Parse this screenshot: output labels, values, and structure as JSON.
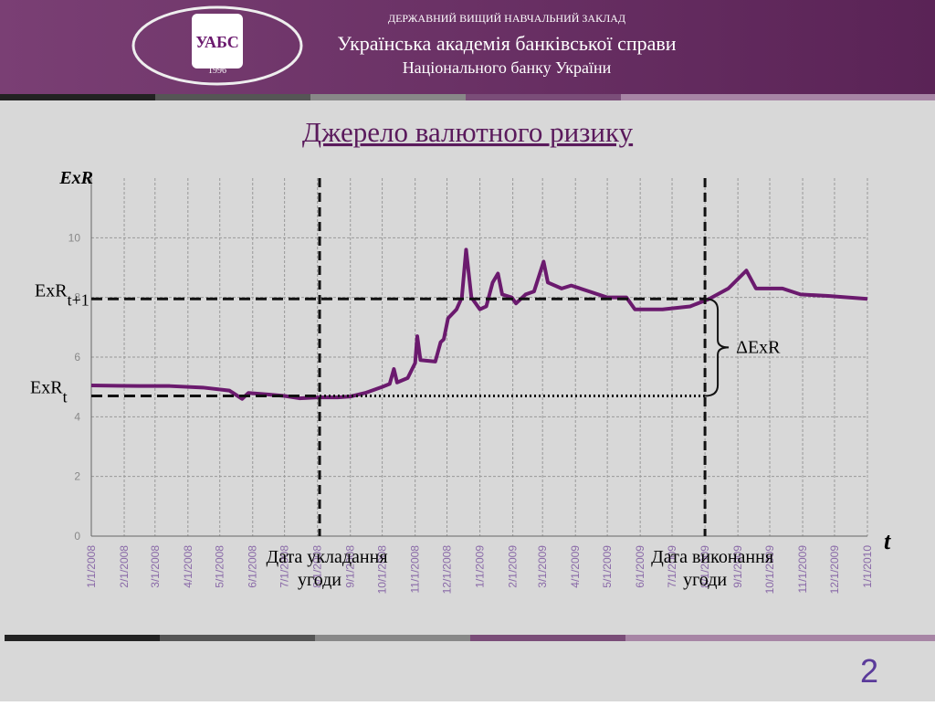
{
  "header": {
    "pretitle": "ДЕРЖАВНИЙ ВИЩИЙ НАВЧАЛЬНИЙ ЗАКЛАД",
    "title": "Українська академія банківської справи",
    "subtitle": "Національного банку України",
    "logo_text": "УАБС",
    "logo_year": "1996"
  },
  "slide_title": "Джерело валютного ризику",
  "page_number": "2",
  "chart_data": {
    "type": "line",
    "y_label": "ExR",
    "x_label": "t",
    "x": [
      "2008-01-01",
      "2008-02-15",
      "2008-03-15",
      "2008-04-15",
      "2008-05-10",
      "2008-05-22",
      "2008-05-28",
      "2008-06-15",
      "2008-07-01",
      "2008-07-15",
      "2008-08-01",
      "2008-08-20",
      "2008-09-01",
      "2008-09-15",
      "2008-10-01",
      "2008-10-08",
      "2008-10-12",
      "2008-10-15",
      "2008-10-25",
      "2008-11-01",
      "2008-11-03",
      "2008-11-06",
      "2008-11-20",
      "2008-11-25",
      "2008-11-28",
      "2008-12-02",
      "2008-12-10",
      "2008-12-15",
      "2008-12-19",
      "2008-12-24",
      "2009-01-01",
      "2009-01-07",
      "2009-01-13",
      "2009-01-18",
      "2009-01-22",
      "2009-01-31",
      "2009-02-04",
      "2009-02-13",
      "2009-02-21",
      "2009-03-02",
      "2009-03-06",
      "2009-03-19",
      "2009-03-28",
      "2009-04-14",
      "2009-05-01",
      "2009-05-19",
      "2009-05-27",
      "2009-06-22",
      "2009-07-18",
      "2009-08-05",
      "2009-08-23",
      "2009-09-09",
      "2009-09-18",
      "2009-10-13",
      "2009-10-30",
      "2009-11-25",
      "2010-01-01"
    ],
    "series": [
      {
        "name": "ExR",
        "color": "#6b1a6e",
        "values": [
          5.05,
          5.03,
          5.03,
          4.98,
          4.88,
          4.6,
          4.8,
          4.75,
          4.7,
          4.62,
          4.65,
          4.65,
          4.68,
          4.8,
          5.0,
          5.1,
          5.6,
          5.15,
          5.3,
          5.8,
          6.7,
          5.9,
          5.85,
          6.5,
          6.6,
          7.3,
          7.6,
          8.0,
          9.6,
          8.0,
          7.6,
          7.7,
          8.5,
          8.8,
          8.1,
          8.0,
          7.8,
          8.1,
          8.2,
          9.2,
          8.5,
          8.3,
          8.4,
          8.2,
          8.0,
          8.0,
          7.6,
          7.6,
          7.7,
          7.95,
          8.3,
          8.9,
          8.3,
          8.3,
          8.1,
          8.05,
          7.95
        ]
      }
    ],
    "xlim": [
      "2008-01-01",
      "2010-01-01"
    ],
    "xticks": [
      {
        "value": "2008-01-01",
        "label": "1/1/2008"
      },
      {
        "value": "2008-02-01",
        "label": "2/1/2008"
      },
      {
        "value": "2008-03-01",
        "label": "3/1/2008"
      },
      {
        "value": "2008-04-01",
        "label": "4/1/2008"
      },
      {
        "value": "2008-05-01",
        "label": "5/1/2008"
      },
      {
        "value": "2008-06-01",
        "label": "6/1/2008"
      },
      {
        "value": "2008-07-01",
        "label": "7/1/2008"
      },
      {
        "value": "2008-08-01",
        "label": "8/1/2008"
      },
      {
        "value": "2008-09-01",
        "label": "9/1/2008"
      },
      {
        "value": "2008-10-01",
        "label": "10/1/2008"
      },
      {
        "value": "2008-11-01",
        "label": "11/1/2008"
      },
      {
        "value": "2008-12-01",
        "label": "12/1/2008"
      },
      {
        "value": "2009-01-01",
        "label": "1/1/2009"
      },
      {
        "value": "2009-02-01",
        "label": "2/1/2009"
      },
      {
        "value": "2009-03-01",
        "label": "3/1/2009"
      },
      {
        "value": "2009-04-01",
        "label": "4/1/2009"
      },
      {
        "value": "2009-05-01",
        "label": "5/1/2009"
      },
      {
        "value": "2009-06-01",
        "label": "6/1/2009"
      },
      {
        "value": "2009-07-01",
        "label": "7/1/2009"
      },
      {
        "value": "2009-08-01",
        "label": "8/1/2009"
      },
      {
        "value": "2009-09-01",
        "label": "9/1/2009"
      },
      {
        "value": "2009-10-01",
        "label": "10/1/2009"
      },
      {
        "value": "2009-11-01",
        "label": "11/1/2009"
      },
      {
        "value": "2009-12-01",
        "label": "12/1/2009"
      },
      {
        "value": "2010-01-01",
        "label": "1/1/2010"
      }
    ],
    "ylim": [
      0,
      12
    ],
    "yticks": [
      0,
      2,
      4,
      6,
      8,
      10
    ],
    "grid": true,
    "levels": [
      {
        "label": "ExR",
        "subscript": "t",
        "value": 4.7
      },
      {
        "label": "ExR",
        "subscript": "t+1",
        "value": 7.95
      }
    ],
    "dates": [
      {
        "lines": [
          "Дата укладання",
          "угоди"
        ],
        "x": "2008-08-03"
      },
      {
        "lines": [
          "Дата виконання",
          "угоди"
        ],
        "x": "2009-08-01"
      }
    ],
    "delta_label": "ΔExR"
  }
}
